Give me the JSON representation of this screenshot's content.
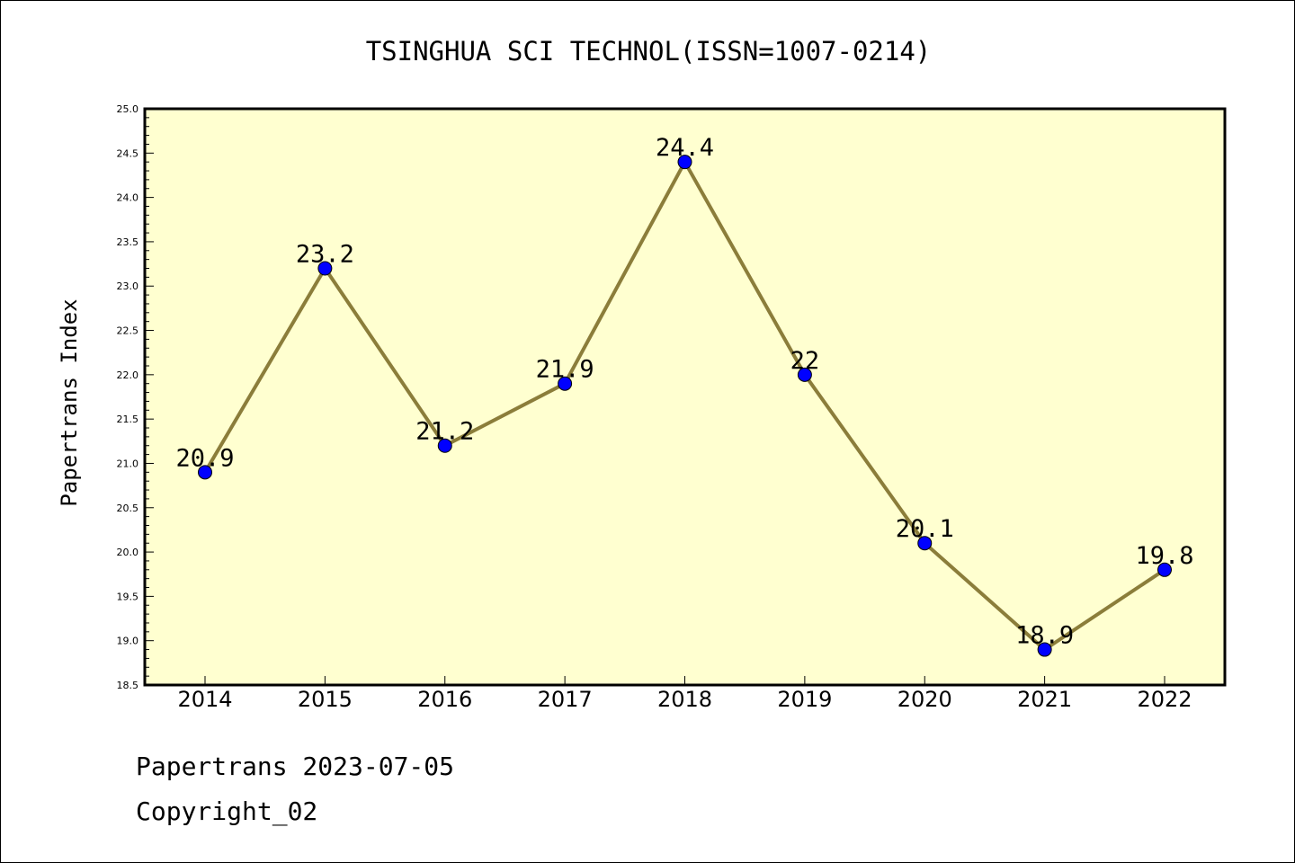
{
  "chart_data": {
    "type": "line",
    "title": "TSINGHUA SCI TECHNOL(ISSN=1007-0214)",
    "ylabel": "Papertrans Index",
    "xlabel": "",
    "categories": [
      "2014",
      "2015",
      "2016",
      "2017",
      "2018",
      "2019",
      "2020",
      "2021",
      "2022"
    ],
    "values": [
      20.9,
      23.2,
      21.2,
      21.9,
      24.4,
      22,
      20.1,
      18.9,
      19.8
    ],
    "data_labels": [
      "20.9",
      "23.2",
      "21.2",
      "21.9",
      "24.4",
      "22",
      "20.1",
      "18.9",
      "19.8"
    ],
    "ylim": [
      18.5,
      25.0
    ],
    "yticks": [
      "18.5",
      "19.0",
      "19.5",
      "20.0",
      "20.5",
      "21.0",
      "21.5",
      "22.0",
      "22.5",
      "23.0",
      "23.5",
      "24.0",
      "24.5",
      "25.0"
    ],
    "grid": false,
    "colors": {
      "plot_background": "#ffffd0",
      "line": "#8b7d3a",
      "marker": "#0000ff"
    }
  },
  "footer": {
    "line1": "Papertrans 2023-07-05",
    "line2": "Copyright_02"
  }
}
